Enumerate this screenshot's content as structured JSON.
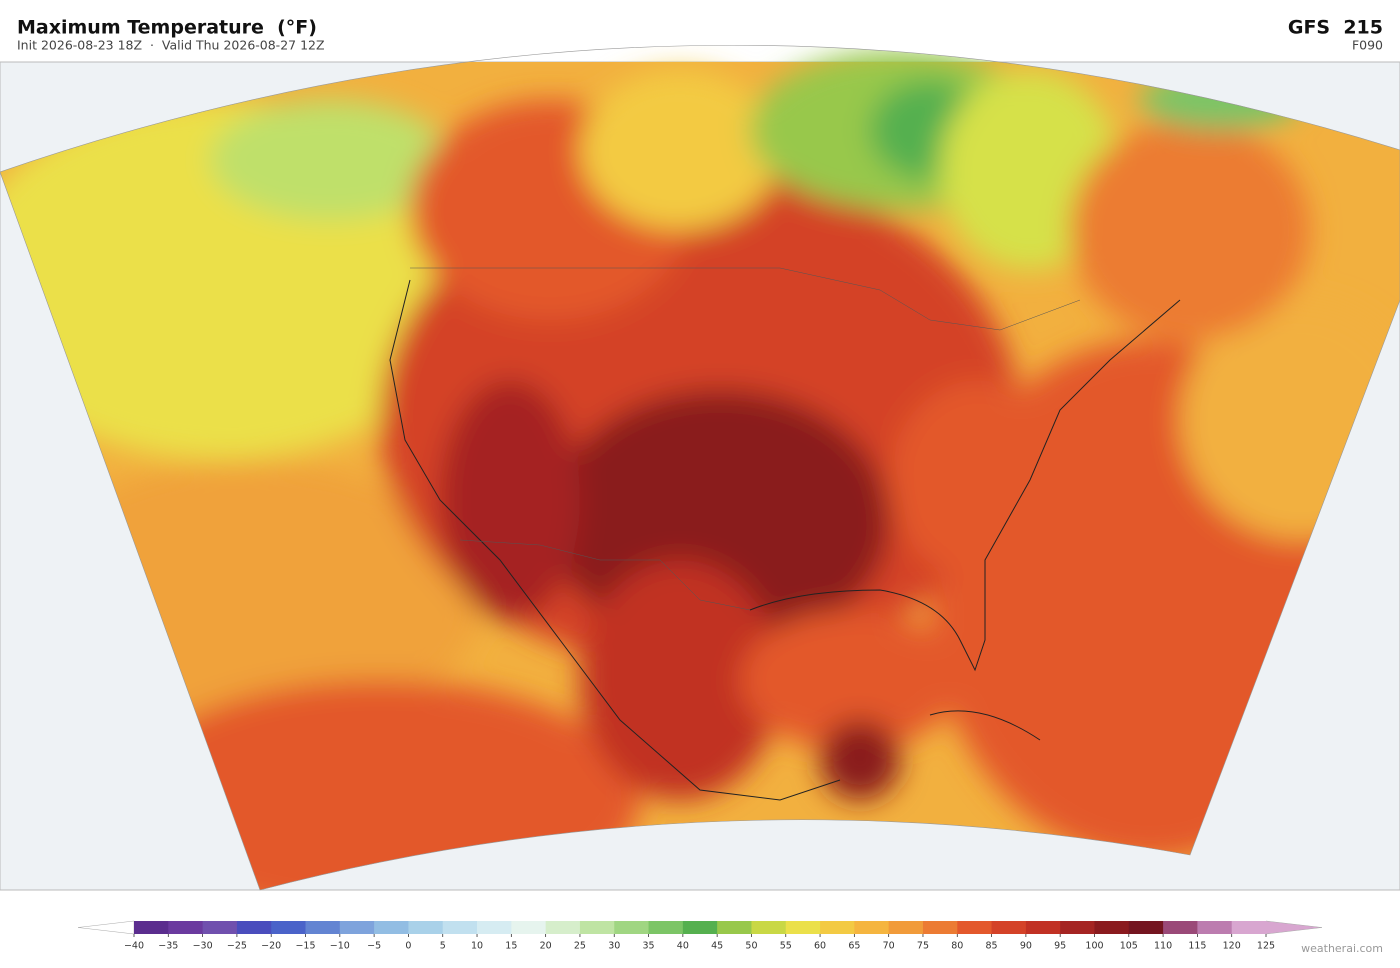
{
  "header": {
    "title": "Maximum Temperature  (°F)",
    "subtitle": "Init 2026-08-23 18Z  ·  Valid Thu 2026-08-27 12Z",
    "model": "GFS  215",
    "forecast_hour": "F090"
  },
  "colorbar": {
    "ticks": [
      {
        "value": -40,
        "label": "−40"
      },
      {
        "value": -35,
        "label": "−35"
      },
      {
        "value": -30,
        "label": "−30"
      },
      {
        "value": -25,
        "label": "−25"
      },
      {
        "value": -20,
        "label": "−20"
      },
      {
        "value": -15,
        "label": "−15"
      },
      {
        "value": -10,
        "label": "−10"
      },
      {
        "value": -5,
        "label": "−5"
      },
      0,
      5,
      10,
      15,
      20,
      25,
      30,
      35,
      40,
      45,
      50,
      55,
      60,
      65,
      70,
      75,
      80,
      85,
      90,
      95,
      100,
      105,
      110,
      115,
      120,
      125
    ],
    "colors": [
      "#5b2d8e",
      "#6b3a9f",
      "#7050ae",
      "#4a4dbd",
      "#4a63c9",
      "#6384d2",
      "#7ea3dc",
      "#92bde3",
      "#a9d1e9",
      "#c1e0ef",
      "#d6ecf2",
      "#e6f4ee",
      "#d6eecb",
      "#bfe4a3",
      "#a0d682",
      "#7cc566",
      "#55b04f",
      "#98c84b",
      "#c9d845",
      "#ebe04a",
      "#f3ca43",
      "#f5b53f",
      "#f19b3a",
      "#ec7b33",
      "#e3582c",
      "#d44228",
      "#c13124",
      "#a52422",
      "#8a1a1e",
      "#741520",
      "#9a4978",
      "#bc7caf",
      "#d8a6d0"
    ],
    "extend_colors": [
      "#ffffff",
      "#d8a6d0"
    ]
  },
  "footer": {
    "credit": "weatherai.com"
  }
}
